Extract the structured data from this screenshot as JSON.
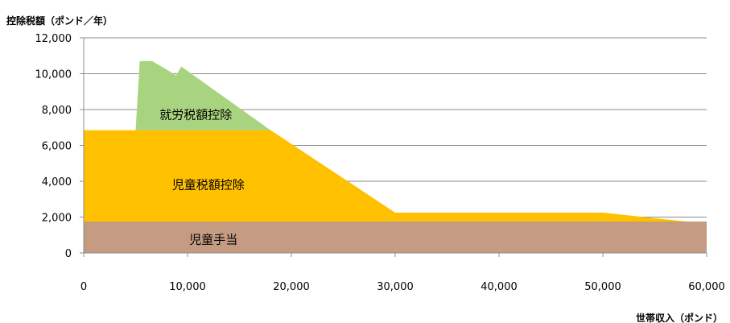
{
  "chart_data": {
    "type": "area",
    "title": "",
    "ylabel": "控除税額（ポンド／年）",
    "xlabel": "世帯収入（ポンド）",
    "xlim": [
      0,
      60000
    ],
    "ylim": [
      0,
      12000
    ],
    "x_ticks": [
      0,
      10000,
      20000,
      30000,
      40000,
      50000,
      60000
    ],
    "y_ticks": [
      0,
      2000,
      4000,
      6000,
      8000,
      10000,
      12000
    ],
    "x_tick_labels": [
      "0",
      "10,000",
      "20,000",
      "30,000",
      "40,000",
      "50,000",
      "60,000"
    ],
    "y_tick_labels": [
      "0",
      "2,000",
      "4,000",
      "6,000",
      "8,000",
      "10,000",
      "12,000"
    ],
    "grid": "horizontal",
    "stacked": true,
    "series": [
      {
        "label": "児童手当",
        "color": "#c59b82",
        "points": [
          [
            0,
            0
          ],
          [
            60000,
            0
          ],
          [
            60000,
            1750
          ],
          [
            0,
            1750
          ]
        ],
        "label_at": [
          12500,
          750
        ]
      },
      {
        "label": "児童税額控除",
        "color": "#ffc000",
        "points": [
          [
            0,
            1750
          ],
          [
            60000,
            1750
          ],
          [
            60000,
            1750
          ],
          [
            58000,
            1750
          ],
          [
            50000,
            2250
          ],
          [
            30000,
            2250
          ],
          [
            18000,
            6850
          ],
          [
            0,
            6850
          ]
        ],
        "label_at": [
          12000,
          3800
        ]
      },
      {
        "label": "就労税額控除",
        "color": "#a9d47f",
        "points": [
          [
            5000,
            6850
          ],
          [
            18000,
            6850
          ],
          [
            9400,
            10400
          ],
          [
            9000,
            10000
          ],
          [
            8850,
            10100
          ],
          [
            8950,
            9900
          ],
          [
            6600,
            10700
          ],
          [
            5400,
            10700
          ],
          [
            5000,
            6850
          ]
        ],
        "label_at": [
          10800,
          7700
        ]
      }
    ]
  }
}
